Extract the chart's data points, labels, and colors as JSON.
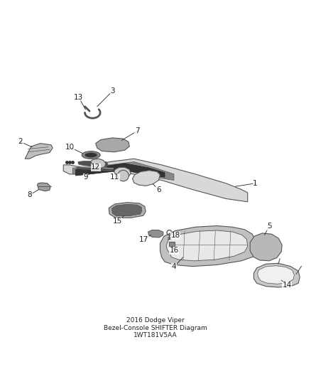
{
  "title": "2016 Dodge Viper\nBezel-Console SHIFTER Diagram\n1WT181V5AA",
  "bg_color": "#ffffff",
  "line_color": "#555555",
  "label_color": "#222222",
  "figwidth": 4.38,
  "figheight": 5.33,
  "dpi": 100
}
